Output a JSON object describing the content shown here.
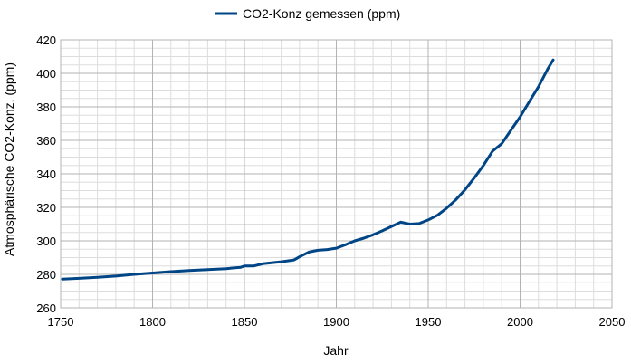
{
  "chart_data": {
    "type": "line",
    "xlabel": "Jahr",
    "ylabel": "Atmosphärische CO2-Konz. (ppm)",
    "xlim": [
      1750,
      2050
    ],
    "ylim": [
      260,
      420
    ],
    "x_ticks": [
      1750,
      1800,
      1850,
      1900,
      1950,
      2000,
      2050
    ],
    "y_ticks": [
      260,
      280,
      300,
      320,
      340,
      360,
      380,
      400,
      420
    ],
    "grid": true,
    "legend_position": "top-center",
    "series": [
      {
        "name": "CO2-Konz gemessen (ppm)",
        "color": "#004586",
        "x": [
          1751,
          1760,
          1770,
          1780,
          1790,
          1800,
          1810,
          1820,
          1830,
          1840,
          1848,
          1850,
          1855,
          1860,
          1870,
          1877,
          1880,
          1885,
          1890,
          1895,
          1900,
          1905,
          1910,
          1915,
          1920,
          1925,
          1930,
          1935,
          1940,
          1945,
          1950,
          1955,
          1960,
          1965,
          1970,
          1975,
          1980,
          1985,
          1990,
          1995,
          2000,
          2005,
          2010,
          2015,
          2018
        ],
        "y": [
          277.2,
          277.6,
          278.2,
          279,
          280,
          280.8,
          281.6,
          282.3,
          282.8,
          283.4,
          284.2,
          285,
          285,
          286.3,
          287.5,
          288.6,
          290.5,
          293.3,
          294.4,
          294.8,
          295.6,
          297.7,
          300,
          301.6,
          303.6,
          306,
          308.6,
          311.2,
          310,
          310.3,
          312.5,
          315.3,
          319.5,
          324.5,
          330.5,
          337.5,
          345,
          353.5,
          358,
          366,
          374,
          383,
          392,
          402.5,
          408
        ]
      }
    ]
  }
}
